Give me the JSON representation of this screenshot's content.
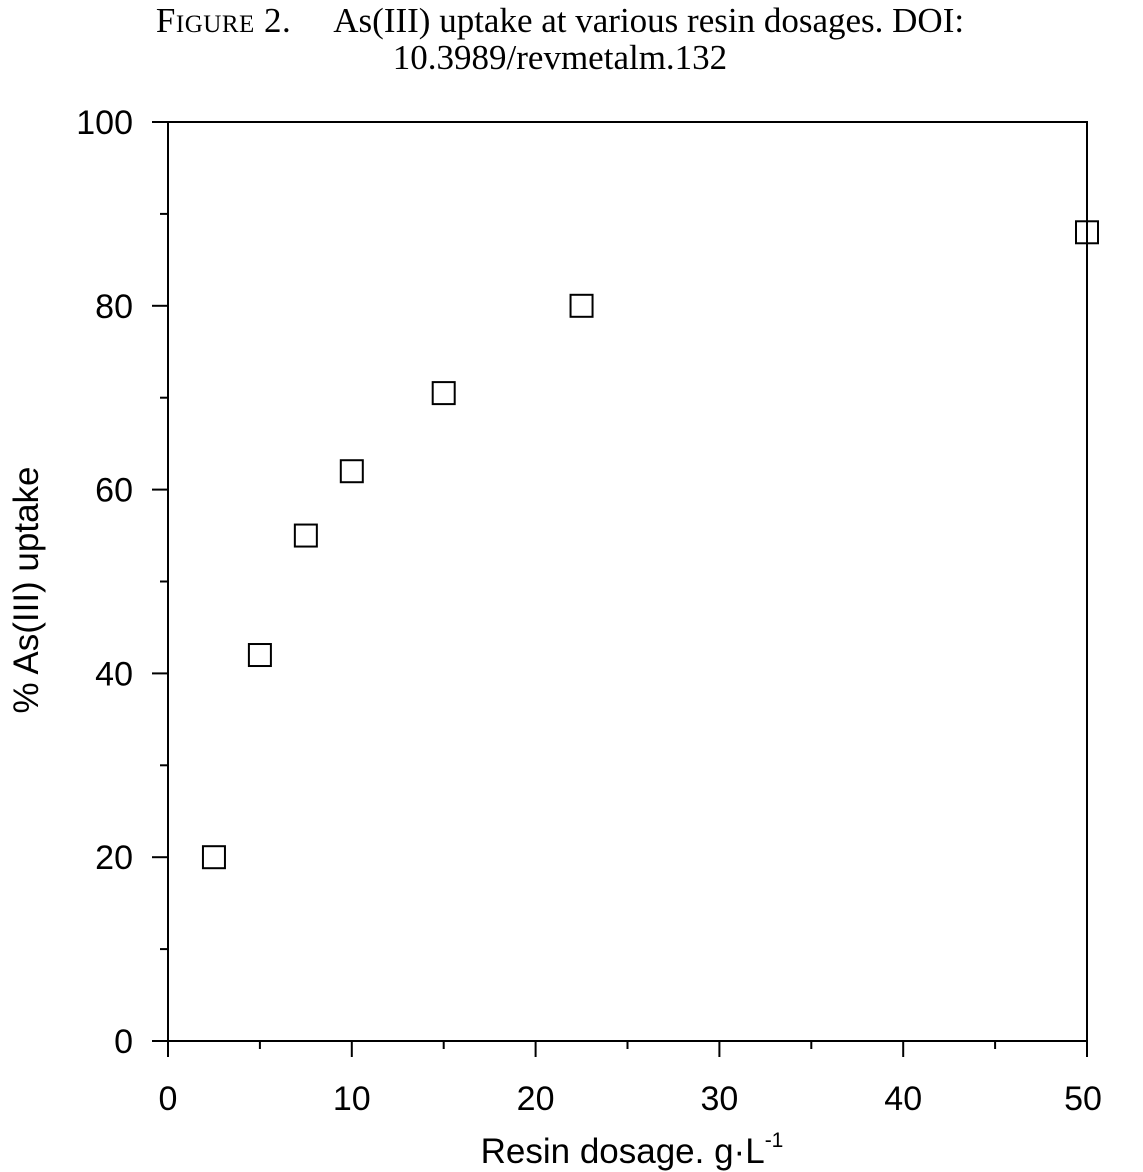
{
  "caption": {
    "figure_label": "Figure 2.",
    "line1": "As(III) uptake at various resin dosages. DOI:",
    "line2": "10.3989/revmetalm.132"
  },
  "chart_data": {
    "type": "scatter",
    "title": "",
    "xlabel": "Resin dosage. g·L",
    "xlabel_superscript": "-1",
    "ylabel": "% As(III) uptake",
    "xlim": [
      0,
      50
    ],
    "ylim": [
      0,
      100
    ],
    "x_ticks": [
      "0",
      "10",
      "20",
      "30",
      "40",
      "50"
    ],
    "y_ticks": [
      "0",
      "20",
      "40",
      "60",
      "80",
      "100"
    ],
    "x_minor_step": 5,
    "y_minor_step": 10,
    "grid": false,
    "marker": "open-square",
    "series": [
      {
        "x": [
          2.5,
          5,
          7.5,
          10,
          15,
          22.5,
          50
        ],
        "y": [
          20,
          42,
          55,
          62,
          70.5,
          80,
          88
        ]
      }
    ]
  }
}
